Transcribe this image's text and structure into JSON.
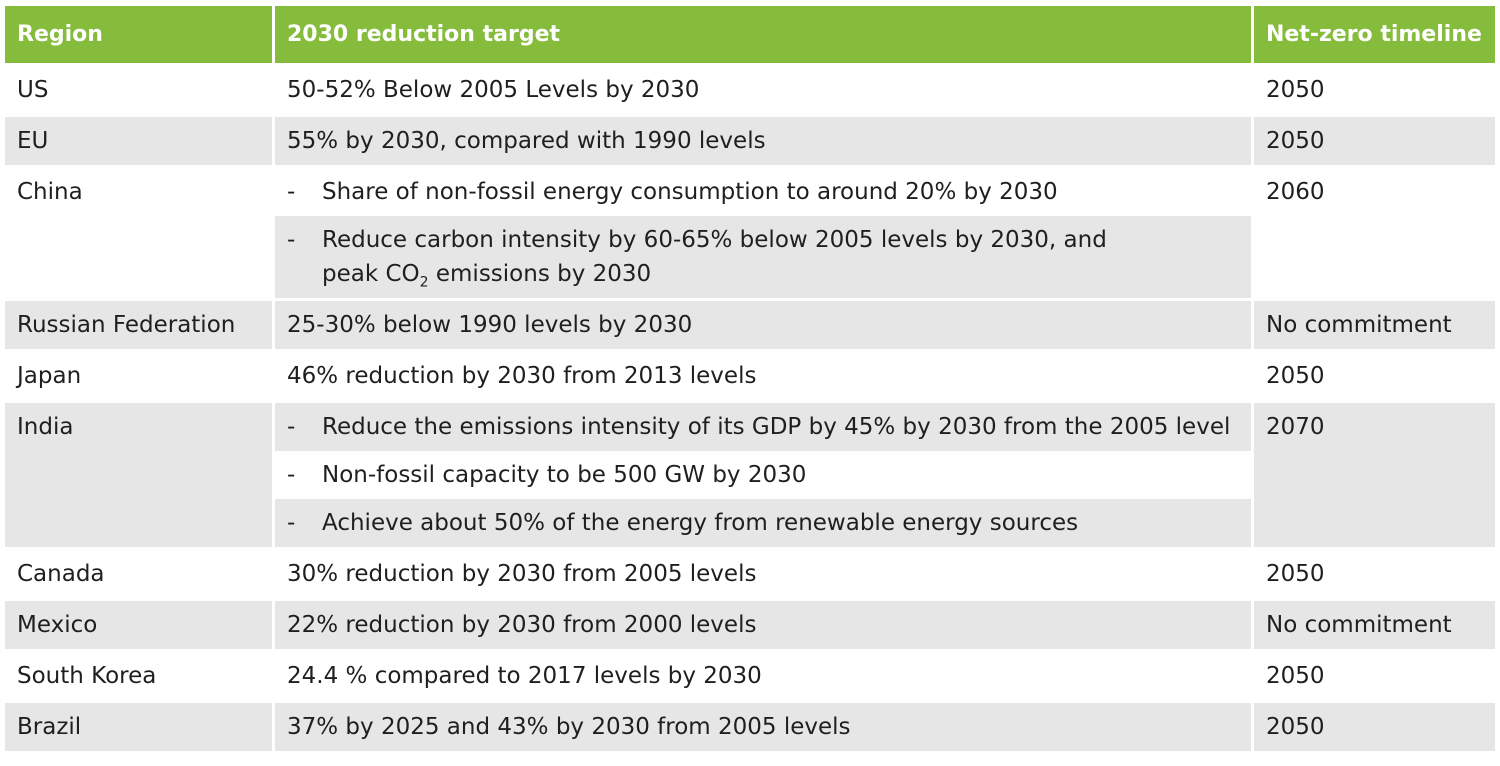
{
  "header": {
    "region": "Region",
    "target": "2030 reduction target",
    "netzero": "Net-zero timeline"
  },
  "rows": [
    {
      "region": "US",
      "target": "50-52% Below 2005 Levels by 2030",
      "netzero": "2050"
    },
    {
      "region": "EU",
      "target": "55% by 2030, compared with 1990 levels",
      "netzero": "2050"
    },
    {
      "region": "China",
      "netzero": "2060",
      "bullets": [
        "Share of non-fossil energy consumption to around 20% by 2030",
        "Reduce carbon intensity by 60-65% below 2005 levels by 2030, and",
        "peak CO",
        "2",
        " emissions by 2030"
      ]
    },
    {
      "region": "Russian Federation",
      "target": "25-30% below 1990 levels by 2030",
      "netzero": "No commitment"
    },
    {
      "region": "Japan",
      "target": "46% reduction by 2030 from 2013 levels",
      "netzero": "2050"
    },
    {
      "region": "India",
      "netzero": "2070",
      "bullets": [
        "Reduce the emissions intensity of its GDP by 45% by 2030 from the 2005 level",
        "Non-fossil capacity to be 500 GW by 2030",
        "Achieve about 50% of the energy from renewable energy sources"
      ]
    },
    {
      "region": "Canada",
      "target": "30% reduction by 2030 from 2005 levels",
      "netzero": "2050"
    },
    {
      "region": "Mexico",
      "target": "22% reduction by 2030 from 2000 levels",
      "netzero": "No commitment"
    },
    {
      "region": "South Korea",
      "target": "24.4 % compared to 2017 levels by 2030",
      "netzero": "2050"
    },
    {
      "region": "Brazil",
      "target": "37% by 2025 and 43% by 2030 from 2005 levels",
      "netzero": "2050"
    }
  ],
  "dash": "-"
}
